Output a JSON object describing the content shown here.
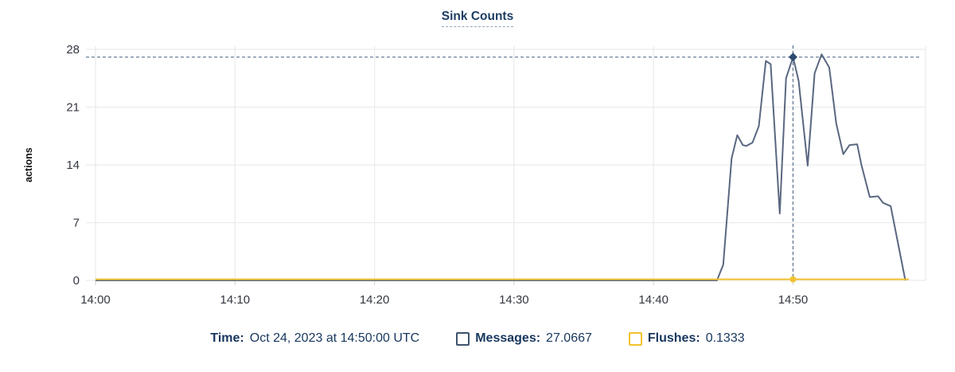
{
  "title": "Sink Counts",
  "chart_data": {
    "type": "line",
    "title": "Sink Counts",
    "xlabel": "",
    "ylabel": "actions",
    "ylim": [
      0,
      28
    ],
    "y_ticks": [
      0,
      7,
      14,
      21,
      28
    ],
    "x_domain_minutes_after_1400": [
      0,
      59.5
    ],
    "x_ticks": [
      {
        "t": 0,
        "label": "14:00"
      },
      {
        "t": 10,
        "label": "14:10"
      },
      {
        "t": 20,
        "label": "14:20"
      },
      {
        "t": 30,
        "label": "14:30"
      },
      {
        "t": 40,
        "label": "14:40"
      },
      {
        "t": 50,
        "label": "14:50"
      }
    ],
    "grid": true,
    "legend_position": "bottom",
    "series": [
      {
        "name": "Messages",
        "color": "#5a6780",
        "points": [
          [
            0,
            0
          ],
          [
            44.55,
            0
          ],
          [
            45.0,
            1.9
          ],
          [
            45.6,
            14.8
          ],
          [
            46.0,
            17.6
          ],
          [
            46.4,
            16.4
          ],
          [
            46.65,
            16.3
          ],
          [
            47.1,
            16.7
          ],
          [
            47.55,
            18.7
          ],
          [
            48.05,
            26.6
          ],
          [
            48.4,
            26.2
          ],
          [
            49.05,
            8.1
          ],
          [
            49.5,
            24.5
          ],
          [
            50.0,
            27.0667
          ],
          [
            50.4,
            24.2
          ],
          [
            51.05,
            13.9
          ],
          [
            51.55,
            25.1
          ],
          [
            52.05,
            27.4
          ],
          [
            52.6,
            25.8
          ],
          [
            53.1,
            19.0
          ],
          [
            53.6,
            15.3
          ],
          [
            54.05,
            16.4
          ],
          [
            54.6,
            16.5
          ],
          [
            54.9,
            14.0
          ],
          [
            55.5,
            10.1
          ],
          [
            56.1,
            10.2
          ],
          [
            56.45,
            9.4
          ],
          [
            57.0,
            9.0
          ],
          [
            58.05,
            0
          ]
        ]
      },
      {
        "name": "Flushes",
        "color": "#f1c232",
        "points": [
          [
            0,
            0.1333
          ],
          [
            58.3,
            0.1333
          ]
        ]
      }
    ],
    "hover_point": {
      "t": 50,
      "time": "14:50:00",
      "messages": 27.0667,
      "flushes": 0.1333
    }
  },
  "tooltip": {
    "time_label": "Time:",
    "time_value": "Oct 24, 2023 at 14:50:00 UTC",
    "messages_label": "Messages:",
    "messages_value": "27.0667",
    "flushes_label": "Flushes:",
    "flushes_value": "0.1333"
  },
  "colors": {
    "navy_text": "#17375e",
    "grid": "#ececec",
    "tick_text": "#343741",
    "crosshair": "#5e7490",
    "messages_line": "#5a6780",
    "flushes_line": "#f1c232",
    "marker_diamond": "#2d4a6e"
  }
}
